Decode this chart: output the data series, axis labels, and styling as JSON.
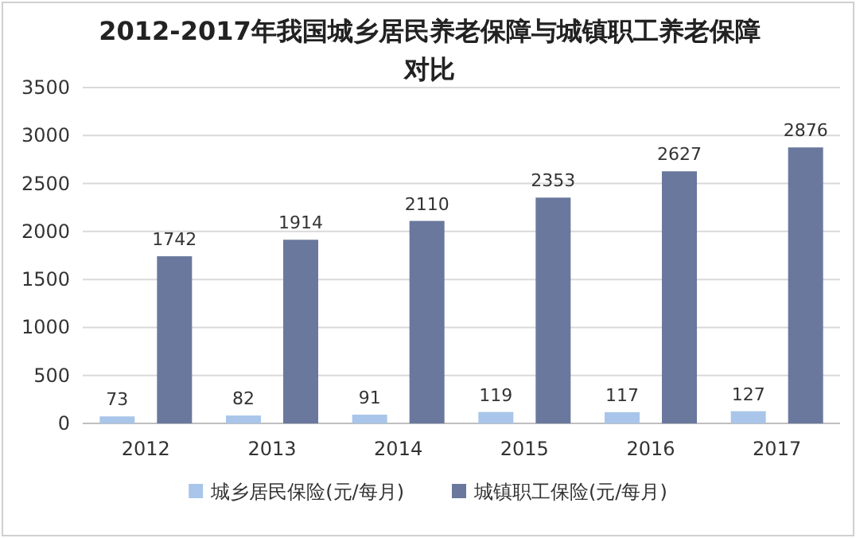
{
  "chart_data": {
    "type": "bar",
    "title": "2012-2017年我国城乡居民养老保障与城镇职工养老保障对比",
    "categories": [
      "2012",
      "2013",
      "2014",
      "2015",
      "2016",
      "2017"
    ],
    "series": [
      {
        "name": "城乡居民保险(元/每月)",
        "color": "#a9c5e9",
        "values": [
          73,
          82,
          91,
          119,
          117,
          127
        ]
      },
      {
        "name": "城镇职工保险(元/每月)",
        "color": "#6a789e",
        "values": [
          1742,
          1914,
          2110,
          2353,
          2627,
          2876
        ]
      }
    ],
    "ylim": [
      0,
      3500
    ],
    "yticks": [
      0,
      500,
      1000,
      1500,
      2000,
      2500,
      3000,
      3500
    ],
    "grid": "y",
    "legend": "bottom",
    "data_labels": true
  }
}
